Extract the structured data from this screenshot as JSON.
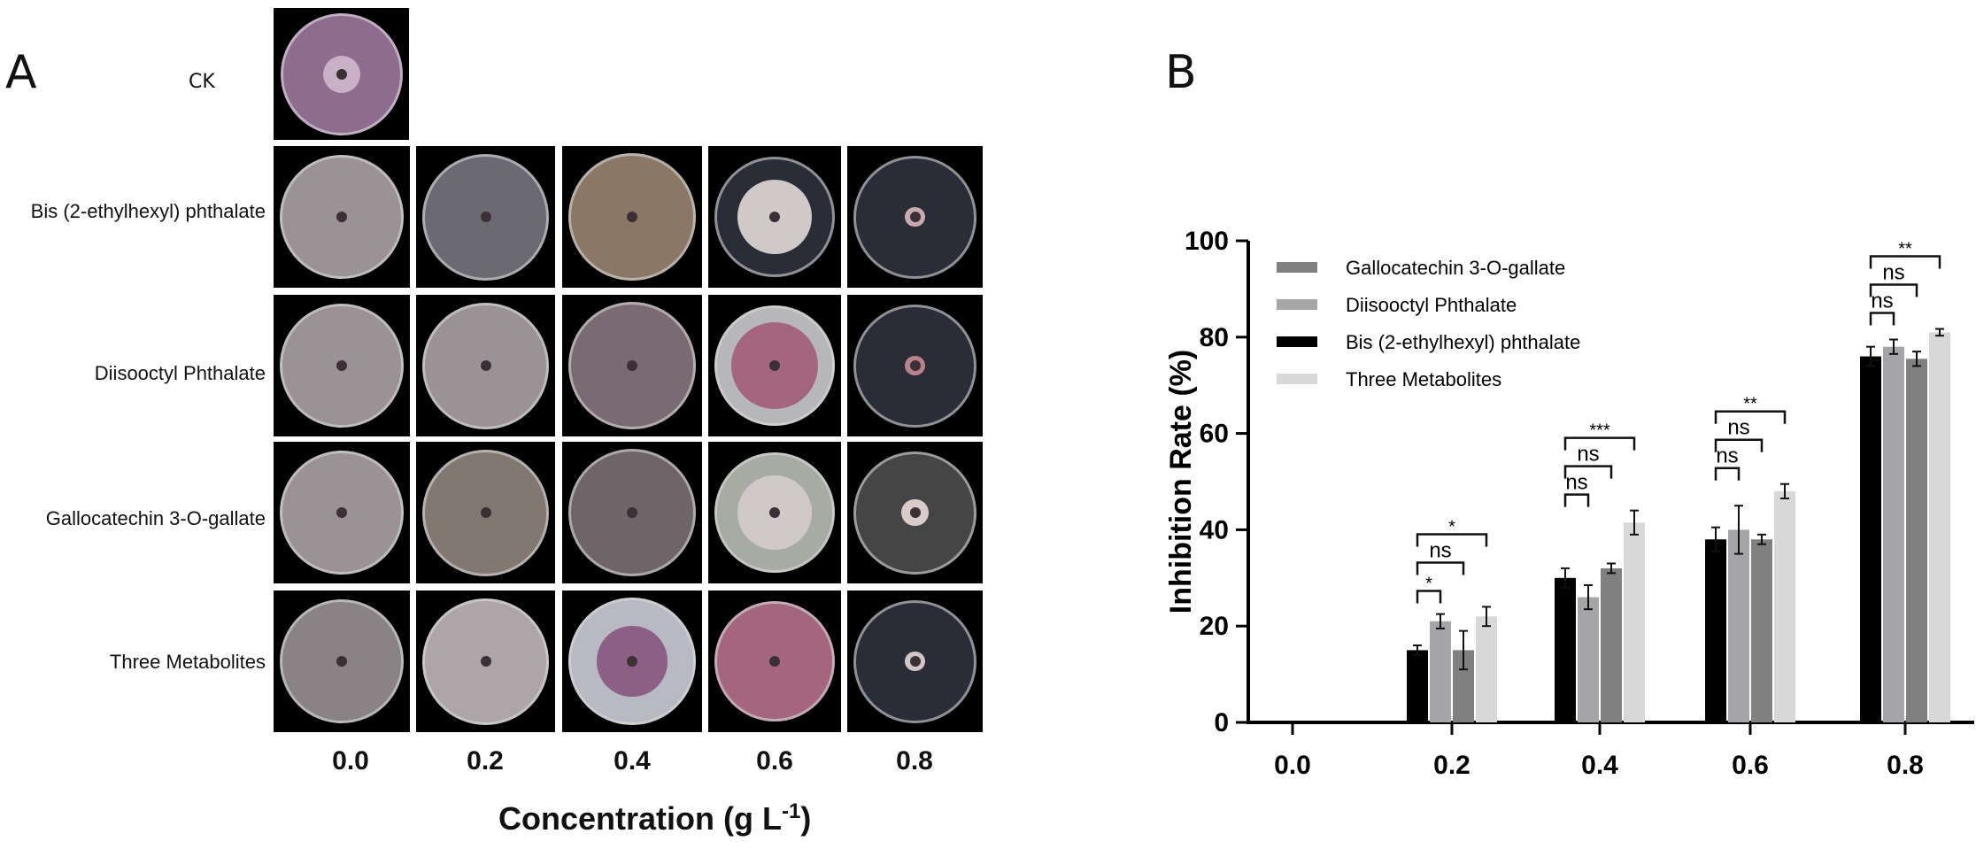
{
  "panel_a": {
    "letter": "A",
    "ck_label": "CK",
    "rows": [
      "Bis (2-ethylhexyl) phthalate",
      "Diisooctyl Phthalate",
      "Gallocatechin 3-O-gallate",
      "Three Metabolites"
    ],
    "concentrations": [
      "0.0",
      "0.2",
      "0.4",
      "0.6",
      "0.8"
    ],
    "xlabel_main": "Concentration (g L",
    "xlabel_sup": "-1",
    "xlabel_end": ")",
    "colors": {
      "ck": "#8e6c8e",
      "grey_growth": "#9a9295",
      "dark_growth": "#6b6a73",
      "brown_growth": "#8a7766",
      "pink_growth": "#a3667e",
      "white_growth": "#cfc9ca",
      "agar_dark": "#2a2d38",
      "agar_light": "#b7b6b9"
    }
  },
  "panel_b": {
    "letter": "B",
    "chart_data": {
      "type": "bar",
      "categories": [
        "0.0",
        "0.2",
        "0.4",
        "0.6",
        "0.8"
      ],
      "series": [
        {
          "name": "Bis (2-ethylhexyl) phthalate",
          "color": "#000000",
          "values": [
            0,
            15,
            30,
            38,
            76
          ],
          "errors": [
            0,
            1,
            2,
            2.5,
            2
          ]
        },
        {
          "name": "Diisooctyl Phthalate",
          "color": "#a5a5a8",
          "values": [
            0,
            21,
            26,
            40,
            78
          ],
          "errors": [
            0,
            1.5,
            2.5,
            5,
            1.5
          ]
        },
        {
          "name": "Gallocatechin 3-O-gallate",
          "color": "#808080",
          "values": [
            0,
            15,
            32,
            38,
            75.5
          ],
          "errors": [
            0,
            4,
            1,
            1,
            1.5
          ]
        },
        {
          "name": "Three Metabolites",
          "color": "#d8d8d8",
          "values": [
            0,
            22,
            41.5,
            48,
            81
          ],
          "errors": [
            0,
            2,
            2.5,
            1.5,
            0.7
          ]
        }
      ],
      "legend_order": [
        "Gallocatechin 3-O-gallate",
        "Diisooctyl Phthalate",
        "Bis (2-ethylhexyl) phthalate",
        "Three Metabolites"
      ],
      "legend_position": "top-left",
      "ylabel": "Inhibition Rate (%)",
      "xlabel": "Concentration (g L-1)",
      "ylim": [
        0,
        100
      ],
      "yticks": [
        "0",
        "20",
        "40",
        "60",
        "80",
        "100"
      ],
      "significance": [
        {
          "category": "0.2",
          "comparison": "Bis (2-ethylhexyl) phthalate vs Diisooctyl Phthalate",
          "label": "*"
        },
        {
          "category": "0.2",
          "comparison": "Bis (2-ethylhexyl) phthalate vs Gallocatechin 3-O-gallate",
          "label": "ns"
        },
        {
          "category": "0.2",
          "comparison": "Bis (2-ethylhexyl) phthalate vs Three Metabolites",
          "label": "*"
        },
        {
          "category": "0.4",
          "comparison": "Bis (2-ethylhexyl) phthalate vs Diisooctyl Phthalate",
          "label": "ns"
        },
        {
          "category": "0.4",
          "comparison": "Bis (2-ethylhexyl) phthalate vs Gallocatechin 3-O-gallate",
          "label": "ns"
        },
        {
          "category": "0.4",
          "comparison": "Bis (2-ethylhexyl) phthalate vs Three Metabolites",
          "label": "***"
        },
        {
          "category": "0.6",
          "comparison": "Bis (2-ethylhexyl) phthalate vs Diisooctyl Phthalate",
          "label": "ns"
        },
        {
          "category": "0.6",
          "comparison": "Bis (2-ethylhexyl) phthalate vs Gallocatechin 3-O-gallate",
          "label": "ns"
        },
        {
          "category": "0.6",
          "comparison": "Bis (2-ethylhexyl) phthalate vs Three Metabolites",
          "label": "**"
        },
        {
          "category": "0.8",
          "comparison": "Bis (2-ethylhexyl) phthalate vs Diisooctyl Phthalate",
          "label": "ns"
        },
        {
          "category": "0.8",
          "comparison": "Bis (2-ethylhexyl) phthalate vs Gallocatechin 3-O-gallate",
          "label": "ns"
        },
        {
          "category": "0.8",
          "comparison": "Bis (2-ethylhexyl) phthalate vs Three Metabolites",
          "label": "**"
        }
      ]
    }
  }
}
